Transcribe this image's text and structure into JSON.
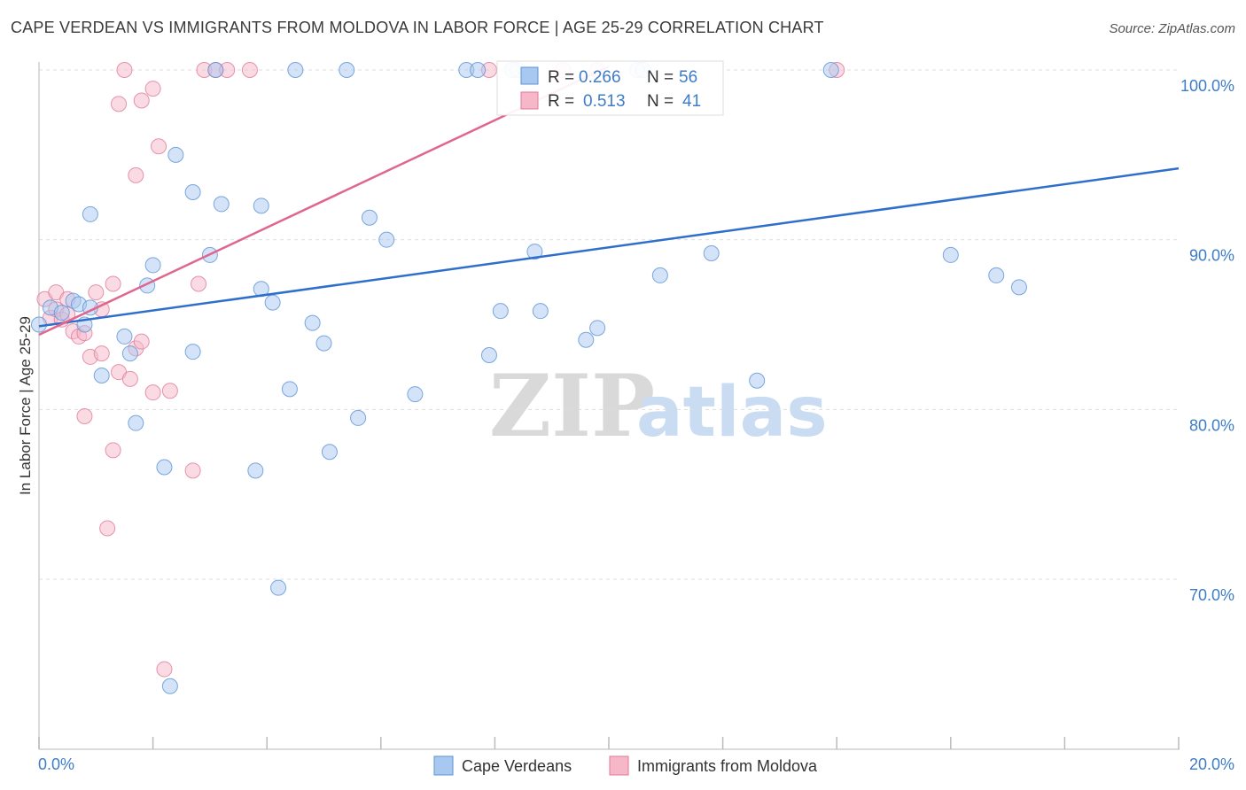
{
  "title": "CAPE VERDEAN VS IMMIGRANTS FROM MOLDOVA IN LABOR FORCE | AGE 25-29 CORRELATION CHART",
  "source": "Source: ZipAtlas.com",
  "watermark": {
    "zip": "ZIP",
    "atlas": "atlas"
  },
  "legend_top": [
    {
      "r_label": "R =",
      "r_value": "0.266",
      "n_label": "N =",
      "n_value": "56"
    },
    {
      "r_label": "R =",
      "r_value": "0.513",
      "n_label": "N =",
      "n_value": "41"
    }
  ],
  "chart_data": {
    "type": "scatter",
    "title": "CAPE VERDEAN VS IMMIGRANTS FROM MOLDOVA IN LABOR FORCE | AGE 25-29 CORRELATION CHART",
    "xlabel": "",
    "ylabel": "In Labor Force | Age 25-29",
    "xlim": [
      0,
      20
    ],
    "ylim": [
      60,
      102
    ],
    "x_tick_labels": [
      {
        "value": 0,
        "label": "0.0%"
      },
      {
        "value": 20,
        "label": "20.0%"
      }
    ],
    "x_minor_ticks": [
      0,
      2,
      4,
      6,
      8,
      10,
      12,
      14,
      16,
      18,
      20
    ],
    "y_ticks": [
      {
        "value": 100,
        "label": "100.0%"
      },
      {
        "value": 90,
        "label": "90.0%"
      },
      {
        "value": 80,
        "label": "80.0%"
      },
      {
        "value": 70,
        "label": "70.0%"
      }
    ],
    "grid": true,
    "legend_position": "bottom-center",
    "colors": {
      "blue_fill": "#a9c8f0",
      "blue_stroke": "#5b93d6",
      "blue_line": "#2f6fcc",
      "pink_fill": "#f6b8c9",
      "pink_stroke": "#e07a9a",
      "pink_line": "#e0668f",
      "tick": "#3d7cc9"
    },
    "series": [
      {
        "name": "Cape Verdeans",
        "r": 0.266,
        "n": 56,
        "trend": {
          "x0": 0.0,
          "y0": 84.9,
          "x1": 20.0,
          "y1": 94.2
        },
        "points": [
          [
            0.0,
            85.0
          ],
          [
            0.2,
            86.0
          ],
          [
            0.4,
            85.7
          ],
          [
            0.6,
            86.4
          ],
          [
            0.7,
            86.2
          ],
          [
            0.8,
            85.0
          ],
          [
            0.9,
            91.5
          ],
          [
            0.9,
            86.0
          ],
          [
            1.1,
            82.0
          ],
          [
            1.5,
            84.3
          ],
          [
            1.6,
            83.3
          ],
          [
            1.7,
            79.2
          ],
          [
            1.9,
            87.3
          ],
          [
            2.0,
            88.5
          ],
          [
            2.2,
            76.6
          ],
          [
            2.3,
            63.7
          ],
          [
            2.4,
            95.0
          ],
          [
            2.7,
            83.4
          ],
          [
            2.7,
            92.8
          ],
          [
            3.0,
            89.1
          ],
          [
            3.1,
            100.0
          ],
          [
            3.2,
            92.1
          ],
          [
            3.8,
            76.4
          ],
          [
            3.9,
            92.0
          ],
          [
            3.9,
            87.1
          ],
          [
            4.1,
            86.3
          ],
          [
            4.2,
            69.5
          ],
          [
            4.4,
            81.2
          ],
          [
            4.5,
            100.0
          ],
          [
            4.8,
            85.1
          ],
          [
            5.0,
            83.9
          ],
          [
            5.1,
            77.5
          ],
          [
            5.4,
            100.0
          ],
          [
            5.6,
            79.5
          ],
          [
            5.8,
            91.3
          ],
          [
            6.1,
            90.0
          ],
          [
            6.6,
            80.9
          ],
          [
            7.5,
            100.0
          ],
          [
            7.7,
            100.0
          ],
          [
            7.9,
            83.2
          ],
          [
            8.1,
            85.8
          ],
          [
            8.4,
            100.0
          ],
          [
            8.7,
            89.3
          ],
          [
            8.8,
            85.8
          ],
          [
            9.6,
            84.1
          ],
          [
            9.8,
            84.8
          ],
          [
            10.5,
            100.0
          ],
          [
            10.9,
            87.9
          ],
          [
            11.8,
            89.2
          ],
          [
            12.6,
            81.7
          ],
          [
            13.9,
            100.0
          ],
          [
            16.0,
            89.1
          ],
          [
            16.8,
            87.9
          ],
          [
            17.2,
            87.2
          ],
          [
            8.3,
            100.0
          ],
          [
            10.6,
            100.0
          ]
        ]
      },
      {
        "name": "Immigrants from Moldova",
        "r": 0.513,
        "n": 41,
        "trend": {
          "x0": 0.0,
          "y0": 84.4,
          "x1": 10.0,
          "y1": 100.2
        },
        "points": [
          [
            0.1,
            86.5
          ],
          [
            0.2,
            85.4
          ],
          [
            0.3,
            85.9
          ],
          [
            0.3,
            86.9
          ],
          [
            0.4,
            85.3
          ],
          [
            0.5,
            86.5
          ],
          [
            0.6,
            84.6
          ],
          [
            0.7,
            84.3
          ],
          [
            0.8,
            84.5
          ],
          [
            0.8,
            79.6
          ],
          [
            0.9,
            83.1
          ],
          [
            1.0,
            86.9
          ],
          [
            1.1,
            85.9
          ],
          [
            1.1,
            83.3
          ],
          [
            1.2,
            73.0
          ],
          [
            1.3,
            87.4
          ],
          [
            1.3,
            77.6
          ],
          [
            1.4,
            98.0
          ],
          [
            1.4,
            82.2
          ],
          [
            1.5,
            100.0
          ],
          [
            1.6,
            81.8
          ],
          [
            1.7,
            93.8
          ],
          [
            1.7,
            83.6
          ],
          [
            1.8,
            84.0
          ],
          [
            1.8,
            98.2
          ],
          [
            2.0,
            98.9
          ],
          [
            2.0,
            81.0
          ],
          [
            2.1,
            95.5
          ],
          [
            2.2,
            64.7
          ],
          [
            2.3,
            81.1
          ],
          [
            2.7,
            76.4
          ],
          [
            2.8,
            87.4
          ],
          [
            2.9,
            100.0
          ],
          [
            3.1,
            100.0
          ],
          [
            3.3,
            100.0
          ],
          [
            3.7,
            100.0
          ],
          [
            7.9,
            100.0
          ],
          [
            9.2,
            100.0
          ],
          [
            9.8,
            100.0
          ],
          [
            14.0,
            100.0
          ],
          [
            0.5,
            85.6
          ]
        ]
      }
    ]
  },
  "legend_bottom": [
    "Cape Verdeans",
    "Immigrants from Moldova"
  ]
}
